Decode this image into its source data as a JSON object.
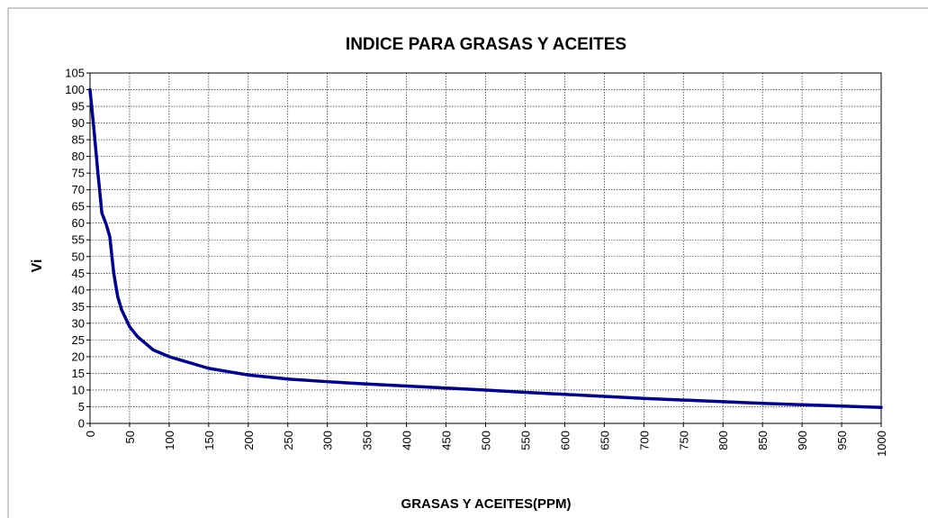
{
  "chart_data": {
    "type": "line",
    "title": "INDICE PARA GRASAS Y ACEITES",
    "x_label": "GRASAS Y ACEITES(PPM)",
    "y_label": "Vi",
    "series": [
      {
        "name": "Vi",
        "color": "#000080",
        "x": [
          0,
          5,
          10,
          15,
          20,
          25,
          30,
          35,
          40,
          50,
          60,
          70,
          80,
          100,
          150,
          200,
          250,
          300,
          350,
          400,
          450,
          500,
          550,
          600,
          650,
          700,
          750,
          800,
          850,
          900,
          950,
          1000
        ],
        "values": [
          100,
          88,
          75,
          63,
          60,
          56,
          45,
          38,
          34,
          29,
          26,
          24,
          22,
          20,
          16.5,
          14.5,
          13.3,
          12.5,
          11.8,
          11.2,
          10.6,
          10,
          9.3,
          8.7,
          8.1,
          7.5,
          7,
          6.5,
          6,
          5.6,
          5.2,
          4.8
        ]
      }
    ],
    "xlim": [
      0,
      1000
    ],
    "xticks": [
      0,
      50,
      100,
      150,
      200,
      250,
      300,
      350,
      400,
      450,
      500,
      550,
      600,
      650,
      700,
      750,
      800,
      850,
      900,
      950,
      1000
    ],
    "ylim": [
      0,
      105
    ],
    "yticks": [
      0,
      5,
      10,
      15,
      20,
      25,
      30,
      35,
      40,
      45,
      50,
      55,
      60,
      65,
      70,
      75,
      80,
      85,
      90,
      95,
      100,
      105
    ],
    "grid": true
  }
}
